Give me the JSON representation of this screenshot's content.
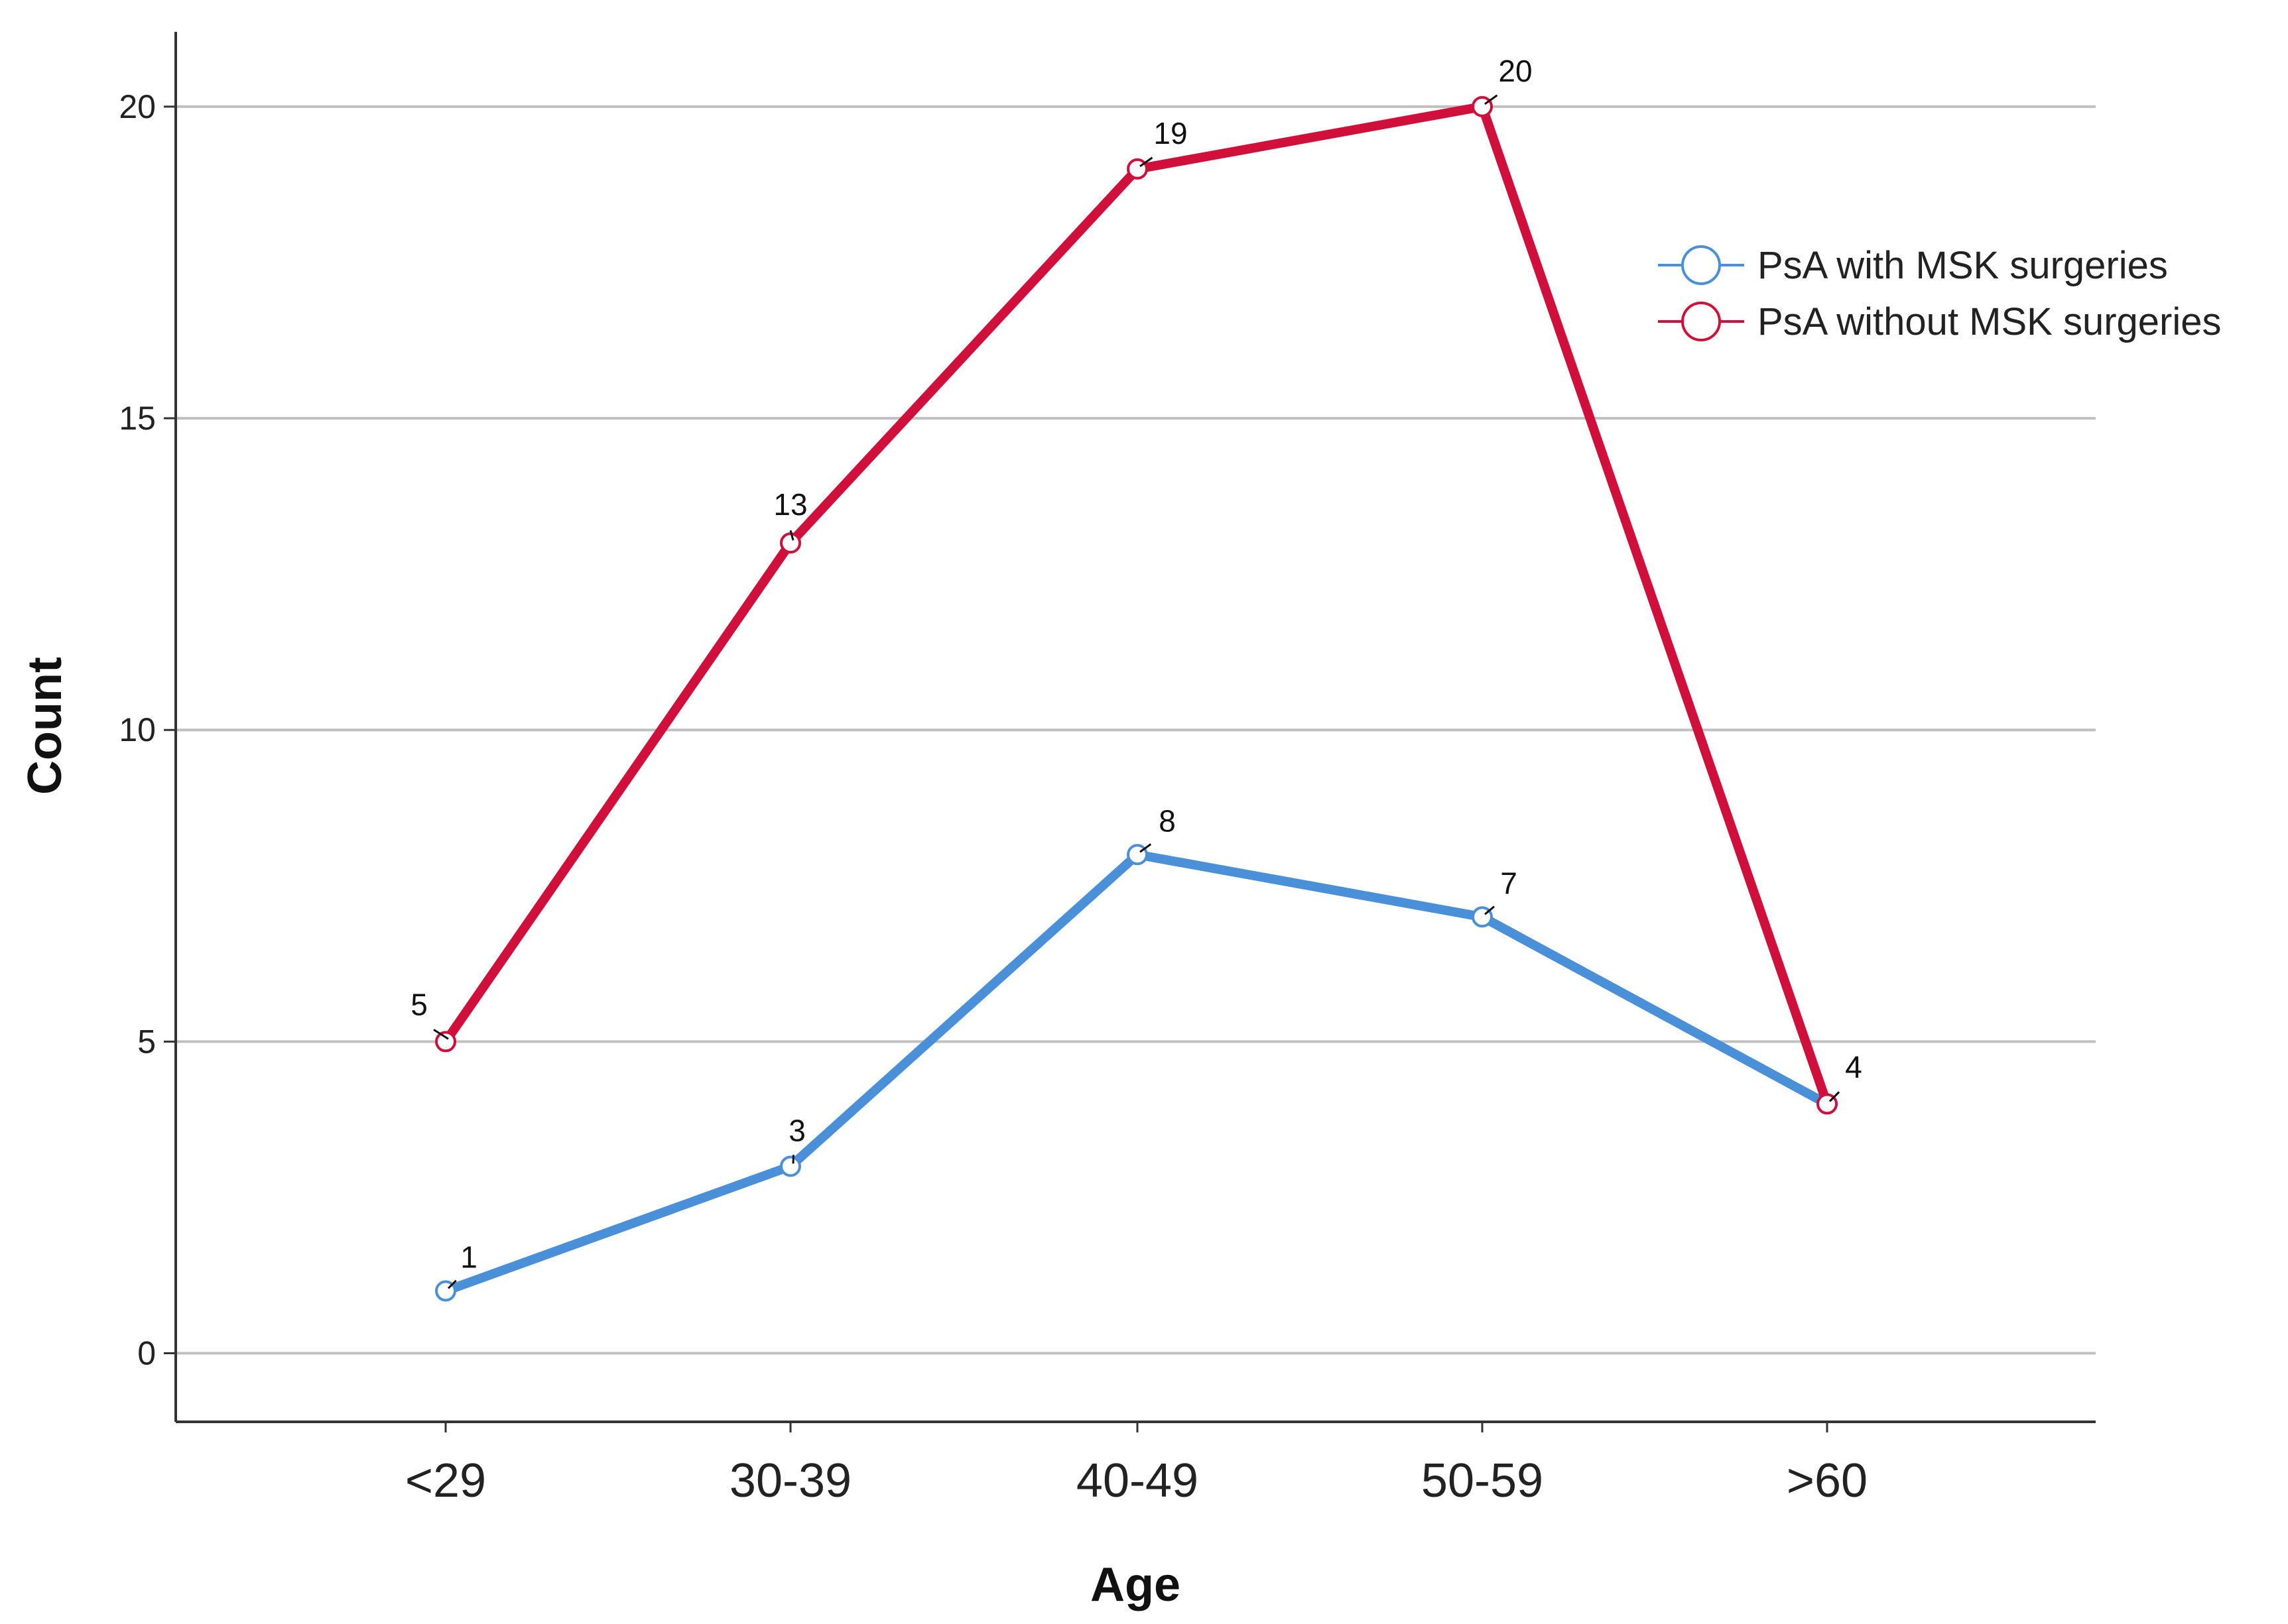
{
  "chart_data": {
    "type": "line",
    "title": "",
    "xlabel": "Age",
    "ylabel": "Count",
    "categories": [
      "<29",
      "30-39",
      "40-49",
      "50-59",
      ">60"
    ],
    "ylim": [
      -1.1,
      21.2
    ],
    "yticks": [
      0,
      5,
      10,
      15,
      20
    ],
    "grid": true,
    "legend_position": "top-right",
    "series": [
      {
        "name": "PsA with MSK surgeries",
        "values": [
          1,
          3,
          8,
          7,
          4
        ],
        "color": "#4a90d9",
        "labels": [
          "1",
          "3",
          "8",
          "7",
          "4"
        ]
      },
      {
        "name": "PsA without MSK surgeries",
        "values": [
          5,
          13,
          19,
          20,
          4
        ],
        "color": "#d0103a",
        "labels": [
          "5",
          "13",
          "19",
          "20",
          "4"
        ]
      }
    ]
  }
}
